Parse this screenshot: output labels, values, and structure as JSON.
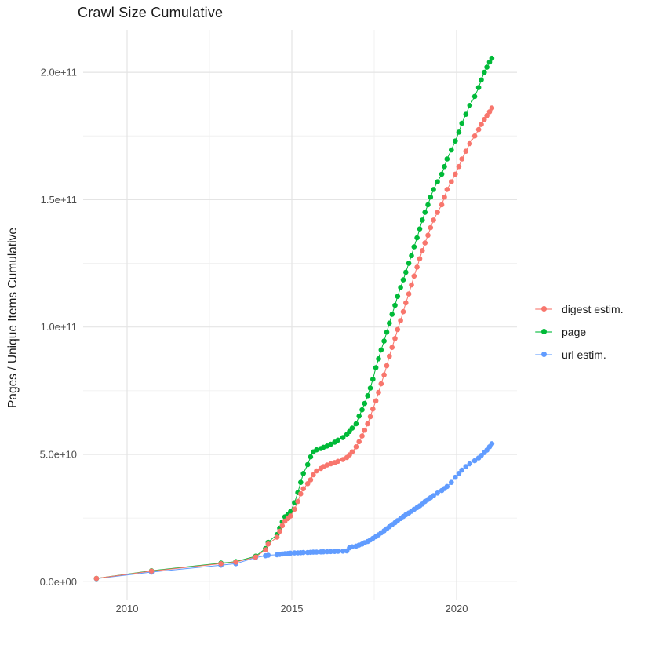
{
  "title": "Crawl Size Cumulative",
  "y_axis": {
    "title": "Pages / Unique Items Cumulative",
    "value_unit": "1e9",
    "ticks": [
      {
        "value": 0,
        "label": "0.0e+00"
      },
      {
        "value": 50,
        "label": "5.0e+10"
      },
      {
        "value": 100,
        "label": "1.0e+11"
      },
      {
        "value": 150,
        "label": "1.5e+11"
      },
      {
        "value": 200,
        "label": "2.0e+11"
      }
    ],
    "minor_ticks": [
      25,
      75,
      125,
      175
    ]
  },
  "x_axis": {
    "ticks": [
      {
        "value": 2010,
        "label": "2010"
      },
      {
        "value": 2015,
        "label": "2015"
      },
      {
        "value": 2020,
        "label": "2020"
      }
    ],
    "minor_ticks": [
      2012.5,
      2017.5
    ]
  },
  "legend": {
    "position": "right",
    "items": [
      {
        "label": "digest estim.",
        "color": "#F8766D"
      },
      {
        "label": "page",
        "color": "#00BA38"
      },
      {
        "label": "url estim.",
        "color": "#619CFF"
      }
    ]
  },
  "colors": {
    "background": "#ffffff",
    "grid_major": "#E4E4E4",
    "grid_minor": "#F0F0F0",
    "tick_text": "#4d4d4d",
    "series_digest": "#F8766D",
    "series_page": "#00BA38",
    "series_url": "#619CFF"
  },
  "chart_data": {
    "type": "scatter",
    "style": "line+point",
    "title": "Crawl Size Cumulative",
    "xlabel": "",
    "ylabel": "Pages / Unique Items Cumulative",
    "x_unit": "decimal_year",
    "y_unit": "pages (value x 1e9)",
    "xlim": [
      2008.67,
      2021.81
    ],
    "ylim_e9": [
      -7,
      216
    ],
    "grid": true,
    "legend_position": "right",
    "series": [
      {
        "name": "digest estim.",
        "color": "#F8766D",
        "points": [
          [
            2009.07,
            1.3
          ],
          [
            2010.74,
            4.2
          ],
          [
            2012.85,
            7.1
          ],
          [
            2013.3,
            7.7
          ],
          [
            2013.9,
            9.7
          ],
          [
            2014.2,
            12.5
          ],
          [
            2014.28,
            14.8
          ],
          [
            2014.55,
            17.5
          ],
          [
            2014.63,
            19.8
          ],
          [
            2014.71,
            22.0
          ],
          [
            2014.79,
            23.8
          ],
          [
            2014.88,
            24.8
          ],
          [
            2014.96,
            25.8
          ],
          [
            2015.08,
            28.5
          ],
          [
            2015.18,
            31.5
          ],
          [
            2015.27,
            34.5
          ],
          [
            2015.35,
            36.5
          ],
          [
            2015.48,
            38.5
          ],
          [
            2015.57,
            40.0
          ],
          [
            2015.65,
            42.0
          ],
          [
            2015.75,
            43.5
          ],
          [
            2015.88,
            44.5
          ],
          [
            2015.96,
            45.2
          ],
          [
            2016.07,
            45.8
          ],
          [
            2016.18,
            46.3
          ],
          [
            2016.3,
            46.8
          ],
          [
            2016.4,
            47.3
          ],
          [
            2016.55,
            48.0
          ],
          [
            2016.67,
            48.8
          ],
          [
            2016.75,
            49.8
          ],
          [
            2016.83,
            51.0
          ],
          [
            2016.95,
            53.0
          ],
          [
            2017.04,
            55.0
          ],
          [
            2017.13,
            57.2
          ],
          [
            2017.21,
            59.5
          ],
          [
            2017.3,
            62.0
          ],
          [
            2017.38,
            64.8
          ],
          [
            2017.46,
            67.8
          ],
          [
            2017.55,
            71.0
          ],
          [
            2017.63,
            74.3
          ],
          [
            2017.71,
            77.7
          ],
          [
            2017.8,
            81.2
          ],
          [
            2017.88,
            84.8
          ],
          [
            2017.96,
            88.5
          ],
          [
            2018.04,
            92.0
          ],
          [
            2018.13,
            95.5
          ],
          [
            2018.21,
            99.0
          ],
          [
            2018.3,
            102.5
          ],
          [
            2018.38,
            106.0
          ],
          [
            2018.46,
            109.5
          ],
          [
            2018.55,
            113.0
          ],
          [
            2018.63,
            116.5
          ],
          [
            2018.71,
            120.0
          ],
          [
            2018.8,
            123.5
          ],
          [
            2018.88,
            126.8
          ],
          [
            2018.96,
            130.0
          ],
          [
            2019.04,
            133.0
          ],
          [
            2019.13,
            136.0
          ],
          [
            2019.21,
            139.0
          ],
          [
            2019.3,
            142.0
          ],
          [
            2019.42,
            145.0
          ],
          [
            2019.55,
            148.0
          ],
          [
            2019.63,
            151.0
          ],
          [
            2019.71,
            154.0
          ],
          [
            2019.84,
            157.0
          ],
          [
            2019.96,
            160.0
          ],
          [
            2020.07,
            163.0
          ],
          [
            2020.16,
            166.0
          ],
          [
            2020.28,
            169.0
          ],
          [
            2020.4,
            172.0
          ],
          [
            2020.55,
            175.0
          ],
          [
            2020.67,
            177.5
          ],
          [
            2020.75,
            179.5
          ],
          [
            2020.84,
            181.5
          ],
          [
            2020.92,
            183.0
          ],
          [
            2021.0,
            184.5
          ],
          [
            2021.07,
            186.0
          ]
        ]
      },
      {
        "name": "page",
        "color": "#00BA38",
        "points": [
          [
            2009.07,
            1.3
          ],
          [
            2010.74,
            4.3
          ],
          [
            2012.85,
            7.3
          ],
          [
            2013.3,
            7.9
          ],
          [
            2013.9,
            10.0
          ],
          [
            2014.2,
            13.0
          ],
          [
            2014.28,
            15.5
          ],
          [
            2014.55,
            18.5
          ],
          [
            2014.63,
            21.0
          ],
          [
            2014.71,
            23.5
          ],
          [
            2014.79,
            25.5
          ],
          [
            2014.88,
            26.5
          ],
          [
            2014.96,
            27.5
          ],
          [
            2015.08,
            31.0
          ],
          [
            2015.18,
            35.0
          ],
          [
            2015.27,
            39.0
          ],
          [
            2015.35,
            42.5
          ],
          [
            2015.48,
            46.0
          ],
          [
            2015.57,
            49.0
          ],
          [
            2015.65,
            51.0
          ],
          [
            2015.75,
            51.8
          ],
          [
            2015.88,
            52.3
          ],
          [
            2015.96,
            52.8
          ],
          [
            2016.07,
            53.3
          ],
          [
            2016.18,
            54.0
          ],
          [
            2016.3,
            54.8
          ],
          [
            2016.4,
            55.6
          ],
          [
            2016.55,
            56.6
          ],
          [
            2016.67,
            57.8
          ],
          [
            2016.75,
            59.0
          ],
          [
            2016.83,
            60.3
          ],
          [
            2016.95,
            62.0
          ],
          [
            2017.04,
            65.0
          ],
          [
            2017.13,
            67.5
          ],
          [
            2017.21,
            70.0
          ],
          [
            2017.3,
            73.0
          ],
          [
            2017.38,
            76.0
          ],
          [
            2017.46,
            79.5
          ],
          [
            2017.55,
            84.0
          ],
          [
            2017.63,
            87.5
          ],
          [
            2017.71,
            91.0
          ],
          [
            2017.8,
            94.5
          ],
          [
            2017.88,
            98.0
          ],
          [
            2017.96,
            101.5
          ],
          [
            2018.04,
            105.0
          ],
          [
            2018.13,
            108.5
          ],
          [
            2018.21,
            112.0
          ],
          [
            2018.3,
            115.5
          ],
          [
            2018.38,
            118.5
          ],
          [
            2018.46,
            121.5
          ],
          [
            2018.55,
            125.0
          ],
          [
            2018.63,
            128.0
          ],
          [
            2018.71,
            131.5
          ],
          [
            2018.8,
            135.0
          ],
          [
            2018.88,
            138.5
          ],
          [
            2018.96,
            142.0
          ],
          [
            2019.04,
            145.0
          ],
          [
            2019.13,
            148.0
          ],
          [
            2019.21,
            151.0
          ],
          [
            2019.3,
            154.0
          ],
          [
            2019.42,
            157.0
          ],
          [
            2019.55,
            160.0
          ],
          [
            2019.63,
            163.0
          ],
          [
            2019.71,
            166.0
          ],
          [
            2019.84,
            169.5
          ],
          [
            2019.96,
            173.0
          ],
          [
            2020.07,
            176.5
          ],
          [
            2020.16,
            180.0
          ],
          [
            2020.28,
            183.5
          ],
          [
            2020.4,
            187.0
          ],
          [
            2020.55,
            190.5
          ],
          [
            2020.67,
            194.0
          ],
          [
            2020.75,
            197.0
          ],
          [
            2020.84,
            200.0
          ],
          [
            2020.92,
            202.0
          ],
          [
            2021.0,
            204.0
          ],
          [
            2021.07,
            205.5
          ]
        ]
      },
      {
        "name": "url estim.",
        "color": "#619CFF",
        "points": [
          [
            2009.07,
            1.2
          ],
          [
            2010.74,
            3.8
          ],
          [
            2012.85,
            6.5
          ],
          [
            2013.3,
            7.1
          ],
          [
            2013.9,
            9.5
          ],
          [
            2014.2,
            10.2
          ],
          [
            2014.28,
            10.4
          ],
          [
            2014.55,
            10.6
          ],
          [
            2014.63,
            10.75
          ],
          [
            2014.71,
            10.9
          ],
          [
            2014.79,
            11.0
          ],
          [
            2014.88,
            11.1
          ],
          [
            2014.96,
            11.2
          ],
          [
            2015.08,
            11.3
          ],
          [
            2015.18,
            11.35
          ],
          [
            2015.27,
            11.4
          ],
          [
            2015.35,
            11.45
          ],
          [
            2015.48,
            11.5
          ],
          [
            2015.57,
            11.55
          ],
          [
            2015.65,
            11.6
          ],
          [
            2015.75,
            11.65
          ],
          [
            2015.88,
            11.7
          ],
          [
            2015.96,
            11.75
          ],
          [
            2016.07,
            11.8
          ],
          [
            2016.18,
            11.85
          ],
          [
            2016.3,
            11.9
          ],
          [
            2016.4,
            11.95
          ],
          [
            2016.55,
            12.0
          ],
          [
            2016.67,
            12.1
          ],
          [
            2016.75,
            13.3
          ],
          [
            2016.83,
            13.7
          ],
          [
            2016.95,
            14.0
          ],
          [
            2017.04,
            14.4
          ],
          [
            2017.13,
            14.8
          ],
          [
            2017.21,
            15.3
          ],
          [
            2017.3,
            15.8
          ],
          [
            2017.38,
            16.4
          ],
          [
            2017.46,
            17.0
          ],
          [
            2017.55,
            17.7
          ],
          [
            2017.63,
            18.4
          ],
          [
            2017.71,
            19.2
          ],
          [
            2017.8,
            20.0
          ],
          [
            2017.88,
            20.8
          ],
          [
            2017.96,
            21.6
          ],
          [
            2018.04,
            22.4
          ],
          [
            2018.13,
            23.2
          ],
          [
            2018.21,
            24.0
          ],
          [
            2018.3,
            24.8
          ],
          [
            2018.38,
            25.6
          ],
          [
            2018.46,
            26.3
          ],
          [
            2018.55,
            27.0
          ],
          [
            2018.63,
            27.7
          ],
          [
            2018.71,
            28.4
          ],
          [
            2018.8,
            29.1
          ],
          [
            2018.88,
            29.8
          ],
          [
            2018.96,
            30.5
          ],
          [
            2019.04,
            31.5
          ],
          [
            2019.13,
            32.3
          ],
          [
            2019.21,
            33.0
          ],
          [
            2019.3,
            33.8
          ],
          [
            2019.42,
            34.8
          ],
          [
            2019.55,
            35.8
          ],
          [
            2019.63,
            36.6
          ],
          [
            2019.71,
            37.4
          ],
          [
            2019.84,
            39.0
          ],
          [
            2019.96,
            41.0
          ],
          [
            2020.07,
            42.5
          ],
          [
            2020.16,
            43.8
          ],
          [
            2020.28,
            45.2
          ],
          [
            2020.4,
            46.3
          ],
          [
            2020.55,
            47.5
          ],
          [
            2020.67,
            48.6
          ],
          [
            2020.75,
            49.6
          ],
          [
            2020.84,
            50.7
          ],
          [
            2020.92,
            51.7
          ],
          [
            2021.0,
            53.0
          ],
          [
            2021.07,
            54.2
          ]
        ]
      }
    ]
  }
}
